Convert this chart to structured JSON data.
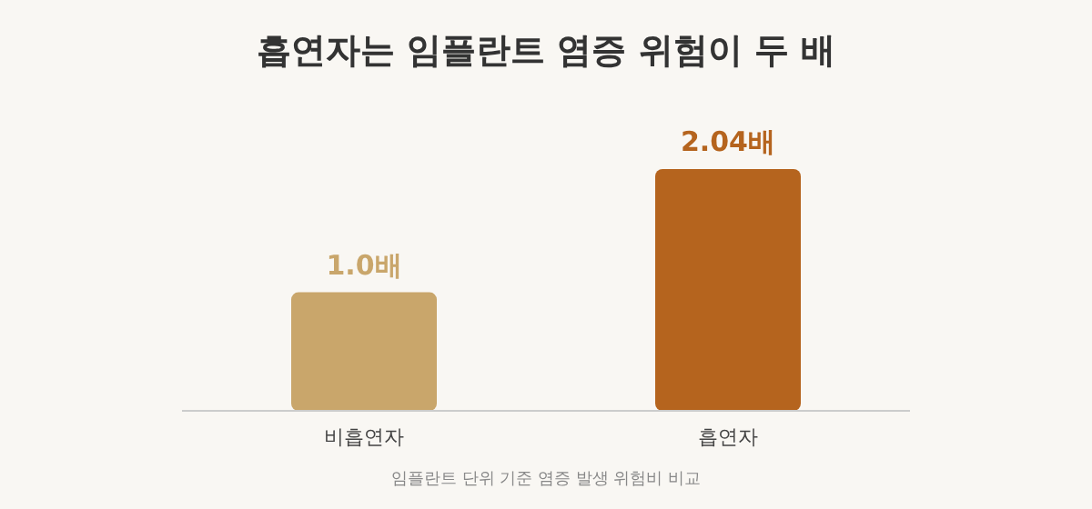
{
  "chart_data": {
    "type": "bar",
    "title": "흡연자는 임플란트 염증 위험이 두 배",
    "categories": [
      "비흡연자",
      "흡연자"
    ],
    "values": [
      1.0,
      2.04
    ],
    "value_labels": [
      "1.0배",
      "2.04배"
    ],
    "colors": [
      "#c9a66b",
      "#b5641e"
    ],
    "annotations": [
      "임플란트 단위 기준 염증 발생 위험비 비교"
    ]
  }
}
